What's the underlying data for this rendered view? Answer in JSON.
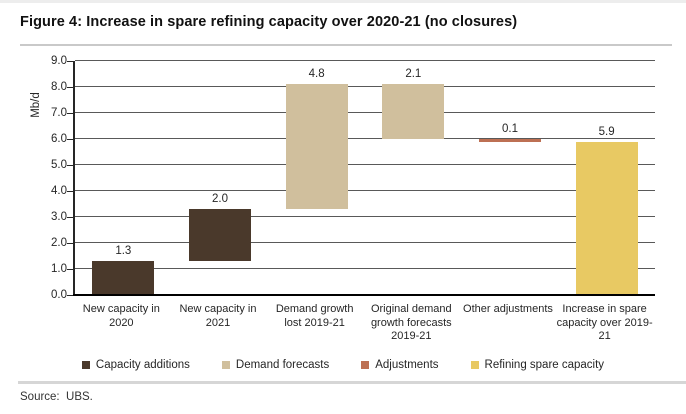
{
  "title": "Figure 4: Increase in spare refining capacity over 2020-21 (no closures)",
  "source": "Source:  UBS.",
  "chart_data": {
    "type": "bar",
    "subtype": "waterfall",
    "title": "Figure 4: Increase in spare refining capacity over 2020-21 (no closures)",
    "xlabel": "",
    "ylabel": "Mb/d",
    "ylim": [
      0,
      9
    ],
    "ytick_step": 1,
    "grid": true,
    "legend_position": "bottom",
    "categories": [
      "New capacity in 2020",
      "New capacity in 2021",
      "Demand growth lost 2019-21",
      "Original demand growth forecasts 2019-21",
      "Other adjustments",
      "Increase in spare capacity over 2019-21"
    ],
    "bars": [
      {
        "category": "New capacity in 2020",
        "label": "1.3",
        "value": 1.3,
        "from": 0.0,
        "to": 1.3,
        "series": "capacity_additions"
      },
      {
        "category": "New capacity in 2021",
        "label": "2.0",
        "value": 2.0,
        "from": 1.3,
        "to": 3.3,
        "series": "capacity_additions"
      },
      {
        "category": "Demand growth lost 2019-21",
        "label": "4.8",
        "value": 4.8,
        "from": 3.3,
        "to": 8.1,
        "series": "demand_forecasts"
      },
      {
        "category": "Original demand growth forecasts 2019-21",
        "label": "2.1",
        "value": -2.1,
        "from": 8.1,
        "to": 6.0,
        "series": "demand_forecasts"
      },
      {
        "category": "Other adjustments",
        "label": "0.1",
        "value": -0.1,
        "from": 6.0,
        "to": 5.9,
        "series": "adjustments"
      },
      {
        "category": "Increase in spare capacity over 2019-21",
        "label": "5.9",
        "value": 5.9,
        "from": 0.0,
        "to": 5.9,
        "series": "refining_spare_capacity"
      }
    ],
    "legend": [
      {
        "label": "Capacity additions",
        "series": "capacity_additions"
      },
      {
        "label": "Demand forecasts",
        "series": "demand_forecasts"
      },
      {
        "label": "Adjustments",
        "series": "adjustments"
      },
      {
        "label": "Refining spare capacity",
        "series": "refining_spare_capacity"
      }
    ],
    "colors": {
      "capacity_additions": "#4a392b",
      "demand_forecasts": "#d0bf9d",
      "adjustments": "#bd7053",
      "refining_spare_capacity": "#e8c963"
    }
  }
}
